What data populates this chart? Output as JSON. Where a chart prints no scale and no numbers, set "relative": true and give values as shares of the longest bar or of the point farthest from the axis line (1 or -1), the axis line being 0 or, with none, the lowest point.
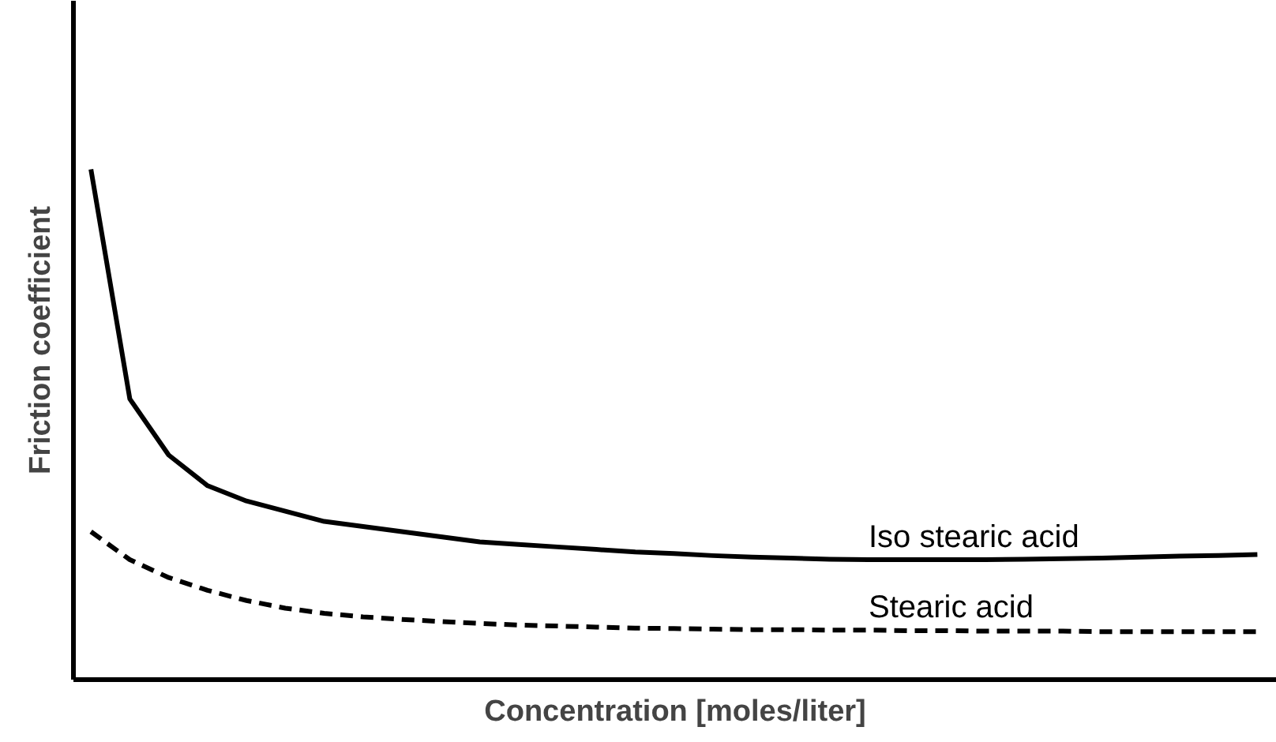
{
  "chart_data": {
    "type": "line",
    "relative": true,
    "xlabel": "Concentration [moles/liter]",
    "ylabel": "Friction coefficient",
    "grid": false,
    "legend": false,
    "marker": "none",
    "categories": [
      null,
      null,
      null,
      null,
      null,
      null,
      null,
      null,
      null,
      null,
      null,
      null,
      null,
      null,
      null,
      null,
      null,
      null,
      null,
      null,
      null,
      null,
      null,
      null,
      null,
      null,
      null,
      null,
      null,
      null,
      null
    ],
    "series": [
      {
        "name": "Iso stearic acid",
        "color": "#000000",
        "line_style": "solid",
        "values": [
          1.0,
          0.55,
          0.44,
          0.38,
          0.35,
          0.33,
          0.31,
          0.3,
          0.29,
          0.28,
          0.27,
          0.265,
          0.26,
          0.255,
          0.25,
          0.247,
          0.243,
          0.24,
          0.238,
          0.236,
          0.235,
          0.235,
          0.235,
          0.235,
          0.236,
          0.237,
          0.238,
          0.24,
          0.242,
          0.243,
          0.245
        ]
      },
      {
        "name": "Stearic acid",
        "color": "#000000",
        "line_style": "dashed",
        "values": [
          0.29,
          0.235,
          0.2,
          0.175,
          0.155,
          0.14,
          0.13,
          0.123,
          0.118,
          0.114,
          0.11,
          0.107,
          0.105,
          0.103,
          0.101,
          0.1,
          0.099,
          0.098,
          0.098,
          0.097,
          0.097,
          0.096,
          0.096,
          0.095,
          0.095,
          0.095,
          0.094,
          0.094,
          0.094,
          0.094,
          0.094
        ]
      }
    ]
  }
}
